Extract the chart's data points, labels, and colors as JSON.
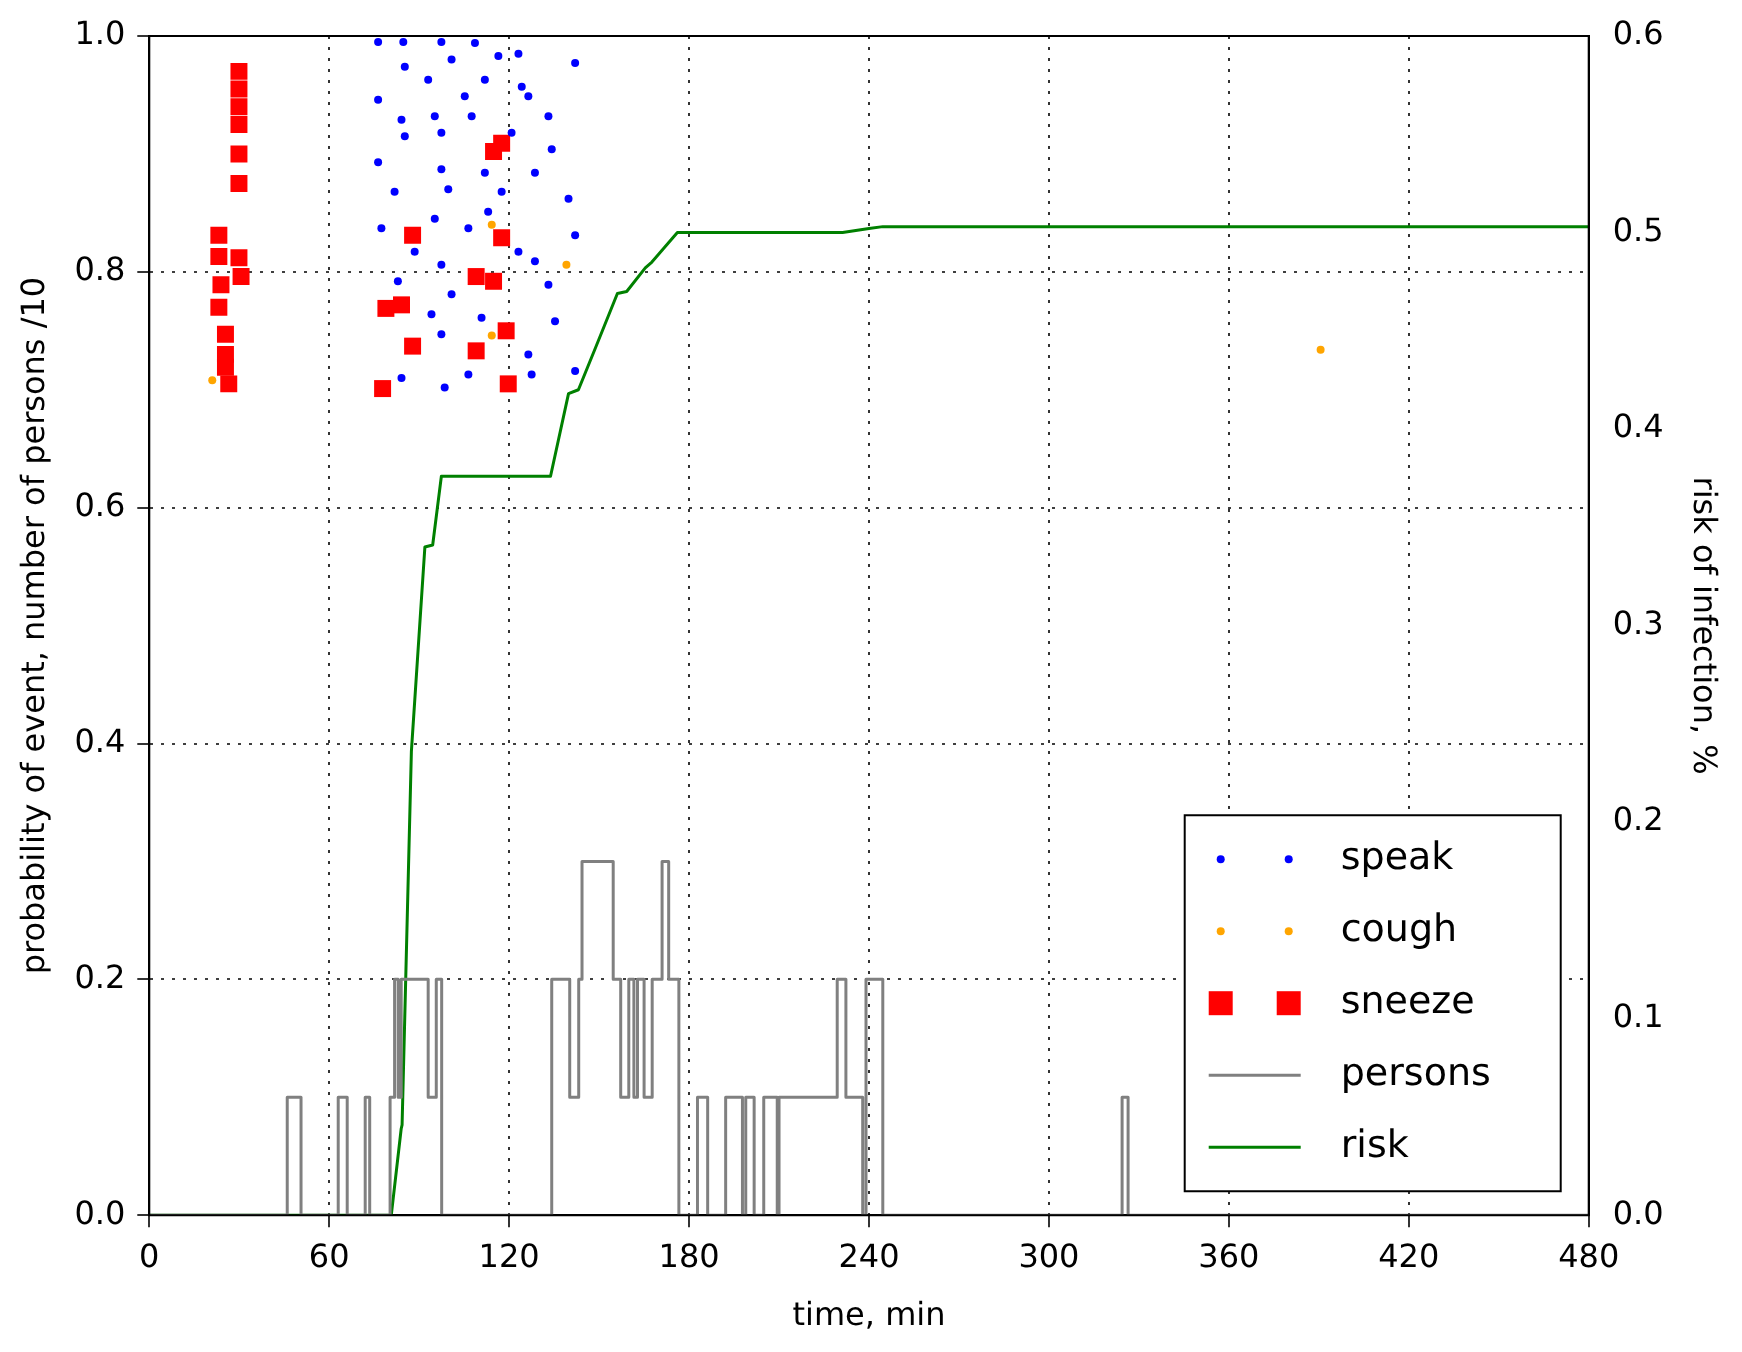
{
  "chart_data": {
    "type": "scatter",
    "xlabel": "time, min",
    "ylabel": "probability of event, number of persons /10",
    "y2label": "risk of infection, %",
    "xlim": [
      0,
      480
    ],
    "xticks": [
      0,
      60,
      120,
      180,
      240,
      300,
      360,
      420,
      480
    ],
    "ylim": [
      0,
      1
    ],
    "yticks": [
      {
        "value": 0,
        "label": "0.0"
      },
      {
        "value": 0.2,
        "label": "0.2"
      },
      {
        "value": 0.4,
        "label": "0.4"
      },
      {
        "value": 0.6,
        "label": "0.6"
      },
      {
        "value": 0.8,
        "label": "0.8"
      },
      {
        "value": 1,
        "label": "1.0"
      }
    ],
    "y2lim": [
      0,
      0.6
    ],
    "y2ticks": [
      {
        "value": 0,
        "label": "0.0"
      },
      {
        "value": 0.1,
        "label": "0.1"
      },
      {
        "value": 0.2,
        "label": "0.2"
      },
      {
        "value": 0.3,
        "label": "0.3"
      },
      {
        "value": 0.4,
        "label": "0.4"
      },
      {
        "value": 0.5,
        "label": "0.5"
      },
      {
        "value": 0.6,
        "label": "0.6"
      }
    ],
    "grid": true,
    "legend": "bottom right",
    "series": [
      {
        "name": "speak",
        "type": "scatter",
        "marker": "circle",
        "color": "#0000ff",
        "x": [
          76.3,
          84.7,
          97.4,
          108.6,
          85.2,
          100.8,
          116.4,
          123.1,
          142.0,
          93.0,
          111.9,
          124.2,
          76.3,
          105.2,
          126.4,
          84.1,
          95.2,
          107.5,
          133.1,
          85.2,
          97.4,
          120.8,
          134.2,
          76.3,
          97.4,
          111.9,
          128.6,
          81.8,
          99.7,
          117.5,
          139.8,
          95.2,
          113.0,
          77.4,
          106.4,
          142.0,
          88.5,
          123.1,
          97.4,
          128.6,
          82.9,
          100.8,
          133.1,
          94.1,
          110.8,
          135.3,
          97.4,
          126.4,
          84.1,
          106.4,
          127.5,
          142.0,
          98.5
        ],
        "values": [
          0.995,
          0.995,
          0.995,
          0.994,
          0.974,
          0.98,
          0.983,
          0.985,
          0.977,
          0.963,
          0.963,
          0.957,
          0.946,
          0.949,
          0.949,
          0.929,
          0.932,
          0.932,
          0.932,
          0.915,
          0.918,
          0.918,
          0.904,
          0.893,
          0.887,
          0.884,
          0.884,
          0.868,
          0.87,
          0.868,
          0.862,
          0.845,
          0.851,
          0.837,
          0.837,
          0.831,
          0.817,
          0.817,
          0.806,
          0.809,
          0.792,
          0.781,
          0.789,
          0.764,
          0.761,
          0.758,
          0.747,
          0.73,
          0.71,
          0.713,
          0.713,
          0.716,
          0.702
        ]
      },
      {
        "name": "cough",
        "type": "scatter",
        "marker": "circle",
        "color": "#ffa500",
        "x": [
          21,
          114.2,
          114.2,
          139.1,
          390.6
        ],
        "values": [
          0.708,
          0.84,
          0.746,
          0.806,
          0.734
        ]
      },
      {
        "name": "sneeze",
        "type": "scatter",
        "marker": "square",
        "color": "#ff0000",
        "x": [
          29.9,
          29.9,
          29.9,
          29.9,
          29.9,
          29.9,
          23.2,
          23.2,
          29.9,
          30.6,
          23.9,
          23.2,
          25.4,
          25.4,
          25.4,
          26.5,
          78.9,
          84.1,
          87.8,
          87.8,
          77.8,
          109,
          114.8,
          109,
          114.8,
          117.5,
          117.5,
          119,
          119.7
        ],
        "values": [
          0.97,
          0.955,
          0.94,
          0.925,
          0.9,
          0.875,
          0.831,
          0.813,
          0.812,
          0.796,
          0.789,
          0.77,
          0.747,
          0.73,
          0.719,
          0.705,
          0.769,
          0.772,
          0.831,
          0.737,
          0.701,
          0.796,
          0.792,
          0.733,
          0.902,
          0.909,
          0.829,
          0.75,
          0.705
        ]
      },
      {
        "name": "persons",
        "type": "step",
        "color": "#808080",
        "x": [
          0,
          46,
          50.6,
          63,
          66,
          72,
          73.5,
          80.3,
          81.8,
          83,
          84,
          93,
          95.7,
          97.5,
          134.2,
          140.2,
          143.2,
          144.3,
          154.7,
          157.2,
          159.9,
          161.6,
          162.8,
          165,
          167.7,
          171,
          173.2,
          176.6,
          182.8,
          186.2,
          192.2,
          197.8,
          198.9,
          201.7,
          204.9,
          209.4,
          210,
          229.4,
          232.3,
          237.9,
          239,
          244.6,
          324.4,
          326.4,
          480
        ],
        "values": [
          0,
          0.1,
          0,
          0.1,
          0,
          0.1,
          0,
          0.1,
          0.2,
          0.1,
          0.2,
          0.1,
          0.2,
          0,
          0.2,
          0.1,
          0.2,
          0.3,
          0.2,
          0.1,
          0.2,
          0.1,
          0.2,
          0.1,
          0.2,
          0.3,
          0.2,
          0,
          0.1,
          0,
          0.1,
          0,
          0.1,
          0,
          0.1,
          0,
          0.1,
          0.2,
          0.1,
          0,
          0.2,
          0,
          0.1,
          0,
          0
        ]
      },
      {
        "name": "risk",
        "type": "line",
        "axis": "y2",
        "color": "#008000",
        "x": [
          0,
          80.7,
          84,
          84.3,
          87.4,
          91.9,
          94.5,
          97.4,
          133.8,
          139.8,
          143.1,
          148.7,
          156.1,
          159.2,
          165.4,
          167.6,
          176.1,
          231.2,
          240,
          244.6,
          480
        ],
        "values": [
          0,
          0,
          0.044,
          0.046,
          0.236,
          0.34,
          0.341,
          0.376,
          0.376,
          0.418,
          0.42,
          0.441,
          0.469,
          0.47,
          0.482,
          0.485,
          0.5,
          0.5,
          0.502,
          0.503,
          0.503
        ]
      }
    ]
  }
}
